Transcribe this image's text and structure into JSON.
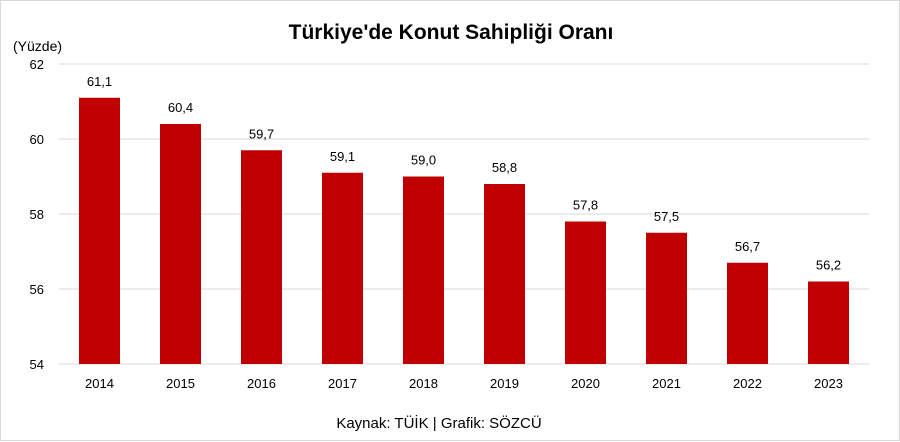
{
  "chart_data": {
    "type": "bar",
    "title": "Türkiye'de Konut Sahipliği Oranı",
    "y_unit_label": "(Yüzde)",
    "categories": [
      "2014",
      "2015",
      "2016",
      "2017",
      "2018",
      "2019",
      "2020",
      "2021",
      "2022",
      "2023"
    ],
    "values": [
      61.1,
      60.4,
      59.7,
      59.1,
      59.0,
      58.8,
      57.8,
      57.5,
      56.7,
      56.2
    ],
    "value_labels": [
      "61,1",
      "60,4",
      "59,7",
      "59,1",
      "59,0",
      "58,8",
      "57,8",
      "57,5",
      "56,7",
      "56,2"
    ],
    "ylim": [
      54,
      62
    ],
    "yticks": [
      54,
      56,
      58,
      60,
      62
    ],
    "grid": true,
    "legend": "none",
    "bar_color": "#c00000",
    "gridline_color": "#d9d9d9",
    "source": "Kaynak: TÜİK | Grafik: SÖZCÜ"
  }
}
